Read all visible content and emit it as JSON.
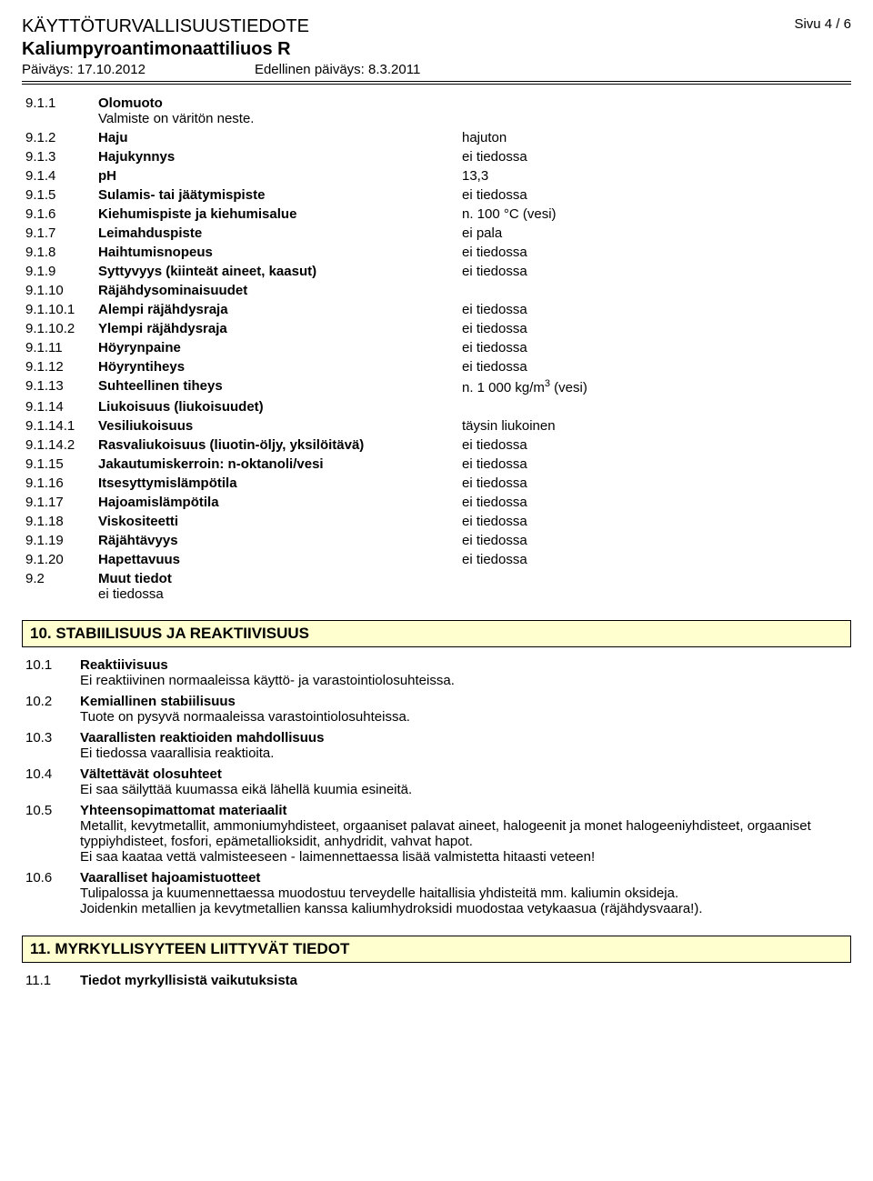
{
  "header": {
    "title": "KÄYTTÖTURVALLISUUSTIEDOTE",
    "product": "Kaliumpyroantimonaattiliuos R",
    "date_label": "Päiväys: 17.10.2012",
    "prev_date_label": "Edellinen päiväys: 8.3.2011",
    "page": "Sivu  4 / 6"
  },
  "props": [
    {
      "num": "9.1.1",
      "label": "Olomuoto",
      "val": "",
      "sub": "Valmiste on väritön neste."
    },
    {
      "num": "9.1.2",
      "label": "Haju",
      "val": "hajuton"
    },
    {
      "num": "9.1.3",
      "label": "Hajukynnys",
      "val": "ei tiedossa"
    },
    {
      "num": "9.1.4",
      "label": "pH",
      "val": "13,3"
    },
    {
      "num": "9.1.5",
      "label": "Sulamis- tai jäätymispiste",
      "val": "ei tiedossa"
    },
    {
      "num": "9.1.6",
      "label": "Kiehumispiste ja kiehumisalue",
      "val": "n. 100 °C (vesi)"
    },
    {
      "num": "9.1.7",
      "label": "Leimahduspiste",
      "val": "ei pala"
    },
    {
      "num": "9.1.8",
      "label": "Haihtumisnopeus",
      "val": "ei tiedossa"
    },
    {
      "num": "9.1.9",
      "label": "Syttyvyys (kiinteät aineet, kaasut)",
      "val": "ei tiedossa"
    },
    {
      "num": "9.1.10",
      "label": "Räjähdysominaisuudet",
      "val": ""
    },
    {
      "num": "9.1.10.1",
      "label": "Alempi räjähdysraja",
      "val": "ei tiedossa"
    },
    {
      "num": "9.1.10.2",
      "label": "Ylempi räjähdysraja",
      "val": "ei tiedossa"
    },
    {
      "num": "9.1.11",
      "label": "Höyrynpaine",
      "val": "ei tiedossa"
    },
    {
      "num": "9.1.12",
      "label": "Höyryntiheys",
      "val": "ei tiedossa"
    },
    {
      "num": "9.1.13",
      "label": "Suhteellinen tiheys",
      "val": "n. 1 000 kg/m³ (vesi)",
      "sup": true
    },
    {
      "num": "9.1.14",
      "label": "Liukoisuus (liukoisuudet)",
      "val": ""
    },
    {
      "num": "9.1.14.1",
      "label": "Vesiliukoisuus",
      "val": "täysin liukoinen"
    },
    {
      "num": "9.1.14.2",
      "label": "Rasvaliukoisuus (liuotin-öljy, yksilöitävä)",
      "val": "ei tiedossa"
    },
    {
      "num": "9.1.15",
      "label": "Jakautumiskerroin: n-oktanoli/vesi",
      "val": "ei tiedossa"
    },
    {
      "num": "9.1.16",
      "label": "Itsesyttymislämpötila",
      "val": "ei tiedossa"
    },
    {
      "num": "9.1.17",
      "label": "Hajoamislämpötila",
      "val": "ei tiedossa"
    },
    {
      "num": "9.1.18",
      "label": "Viskositeetti",
      "val": "ei tiedossa"
    },
    {
      "num": "9.1.19",
      "label": "Räjähtävyys",
      "val": "ei tiedossa"
    },
    {
      "num": "9.1.20",
      "label": "Hapettavuus",
      "val": "ei tiedossa"
    },
    {
      "num": "9.2",
      "label": "Muut tiedot",
      "val": "",
      "sub": "ei tiedossa"
    }
  ],
  "section10_title": "10. STABIILISUUS JA REAKTIIVISUUS",
  "section10": [
    {
      "num": "10.1",
      "label": "Reaktiivisuus",
      "text": "Ei reaktiivinen normaaleissa käyttö- ja varastointiolosuhteissa."
    },
    {
      "num": "10.2",
      "label": "Kemiallinen stabiilisuus",
      "text": "Tuote on pysyvä normaaleissa varastointiolosuhteissa."
    },
    {
      "num": "10.3",
      "label": "Vaarallisten reaktioiden mahdollisuus",
      "text": "Ei tiedossa vaarallisia reaktioita."
    },
    {
      "num": "10.4",
      "label": "Vältettävät olosuhteet",
      "text": "Ei saa säilyttää kuumassa eikä lähellä kuumia esineitä."
    },
    {
      "num": "10.5",
      "label": "Yhteensopimattomat materiaalit",
      "text": "Metallit, kevytmetallit, ammoniumyhdisteet, orgaaniset palavat aineet, halogeenit ja monet halogeeniyhdisteet, orgaaniset typpiyhdisteet, fosfori, epämetallioksidit, anhydridit, vahvat hapot.\nEi saa kaataa vettä valmisteeseen - laimennettaessa lisää valmistetta hitaasti veteen!"
    },
    {
      "num": "10.6",
      "label": "Vaaralliset hajoamistuotteet",
      "text": "Tulipalossa ja kuumennettaessa muodostuu terveydelle haitallisia yhdisteitä mm. kaliumin oksideja.\nJoidenkin metallien ja kevytmetallien kanssa kaliumhydroksidi muodostaa vetykaasua (räjähdysvaara!)."
    }
  ],
  "section11_title": "11. MYRKYLLISYYTEEN LIITTYVÄT TIEDOT",
  "section11": {
    "num": "11.1",
    "label": "Tiedot myrkyllisistä vaikutuksista"
  }
}
